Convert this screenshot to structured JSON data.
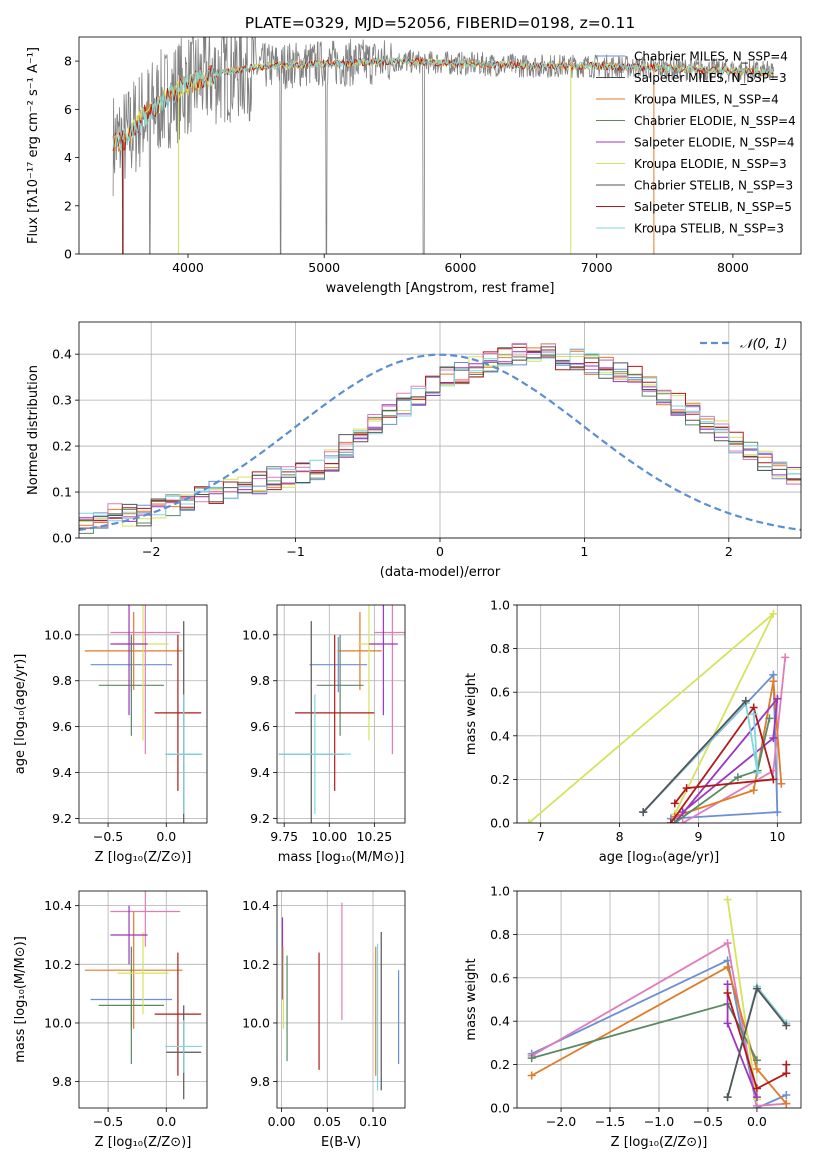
{
  "title": "PLATE=0329, MJD=52056, FIBERID=0198, z=0.11",
  "colors": {
    "chabrier_miles": "#6a8fd5",
    "salpeter_miles": "#4a4a4a",
    "kroupa_miles": "#e07b27",
    "chabrier_elodie": "#5a8a64",
    "salpeter_elodie": "#9c35c0",
    "kroupa_elodie": "#d5e35c",
    "chabrier_stelib": "#555555",
    "salpeter_stelib": "#b01a1a",
    "kroupa_stelib": "#7fd6e0",
    "pink": "#e07cb9"
  },
  "chart_data": [
    {
      "id": "spectrum",
      "type": "line",
      "xlabel": "wavelength [Angstrom, rest frame]",
      "ylabel": "Flux [fλ10⁻¹⁷ erg cm⁻² s⁻¹ A⁻¹]",
      "xlim": [
        3200,
        8500
      ],
      "ylim": [
        0,
        9
      ],
      "xticks": [
        "4000",
        "5000",
        "6000",
        "7000",
        "8000"
      ],
      "yticks": [
        "0",
        "2",
        "4",
        "6",
        "8"
      ],
      "legend_position": "top-right",
      "legend": [
        {
          "label": "Chabrier MILES, N_SSP=4",
          "color": "#6a8fd5"
        },
        {
          "label": "Salpeter MILES, N_SSP=3",
          "color": "#4a4a4a"
        },
        {
          "label": "Kroupa MILES, N_SSP=4",
          "color": "#e07b27"
        },
        {
          "label": "Chabrier ELODIE, N_SSP=4",
          "color": "#5a8a64"
        },
        {
          "label": "Salpeter ELODIE, N_SSP=4",
          "color": "#9c35c0"
        },
        {
          "label": "Kroupa ELODIE, N_SSP=3",
          "color": "#d5e35c"
        },
        {
          "label": "Chabrier STELIB, N_SSP=3",
          "color": "#555555"
        },
        {
          "label": "Salpeter STELIB, N_SSP=5",
          "color": "#b01a1a"
        },
        {
          "label": "Kroupa STELIB, N_SSP=3",
          "color": "#7fd6e0"
        }
      ],
      "model_continuum": {
        "x": [
          3450,
          3550,
          3650,
          3800,
          3950,
          4100,
          4300,
          4600,
          5000,
          5500,
          6000,
          6500,
          7000,
          7500,
          8000,
          8300
        ],
        "y": [
          4.6,
          4.8,
          5.6,
          6.3,
          6.9,
          7.3,
          7.6,
          7.8,
          7.9,
          8.0,
          7.9,
          7.8,
          7.8,
          7.7,
          7.6,
          7.5
        ]
      }
    },
    {
      "id": "residuals",
      "type": "histogram",
      "xlabel": "(data-model)/error",
      "ylabel": "Normed distribution",
      "xlim": [
        -2.5,
        2.5
      ],
      "ylim": [
        0,
        0.47
      ],
      "xticks": [
        "−2",
        "−1",
        "0",
        "1",
        "2"
      ],
      "yticks": [
        "0.0",
        "0.1",
        "0.2",
        "0.3",
        "0.4"
      ],
      "legend": [
        {
          "label": "𝒩(0, 1)",
          "color": "#5b8fd0"
        }
      ],
      "legend_position": "top-right",
      "reference": "normal(0,1)",
      "bins": {
        "start": -2.5,
        "width": 0.1,
        "values": [
          0.03,
          0.04,
          0.05,
          0.05,
          0.05,
          0.06,
          0.07,
          0.08,
          0.09,
          0.1,
          0.11,
          0.11,
          0.12,
          0.13,
          0.13,
          0.14,
          0.15,
          0.17,
          0.2,
          0.22,
          0.25,
          0.27,
          0.29,
          0.31,
          0.33,
          0.35,
          0.36,
          0.37,
          0.38,
          0.39,
          0.4,
          0.4,
          0.4,
          0.39,
          0.39,
          0.38,
          0.37,
          0.36,
          0.35,
          0.33,
          0.31,
          0.29,
          0.27,
          0.25,
          0.23,
          0.21,
          0.19,
          0.17,
          0.15,
          0.13
        ]
      }
    },
    {
      "id": "age_vs_Z",
      "type": "errorbar",
      "xlabel": "Z [log₁₀(Z/Z⊙)]",
      "ylabel": "age  [log₁₀(age/yr)]",
      "xlim": [
        -0.75,
        0.35
      ],
      "ylim": [
        9.18,
        10.13
      ],
      "xticks": [
        "−0.5",
        "0.0"
      ],
      "xtick_values": [
        -0.5,
        0
      ],
      "yticks": [
        "9.2",
        "9.4",
        "9.6",
        "9.8",
        "10.0"
      ],
      "ytick_values": [
        9.2,
        9.4,
        9.6,
        9.8,
        10.0
      ],
      "points": [
        {
          "x": -0.3,
          "xerr": 0.35,
          "y": 9.87,
          "yerr": 0.12,
          "color": "#6a8fd5"
        },
        {
          "x": -0.28,
          "xerr": 0.42,
          "y": 9.93,
          "yerr": 0.17,
          "color": "#e07b27"
        },
        {
          "x": -0.3,
          "xerr": 0.28,
          "y": 9.78,
          "yerr": 0.22,
          "color": "#5a8a64"
        },
        {
          "x": -0.2,
          "xerr": 0.22,
          "y": 9.96,
          "yerr": 0.42,
          "color": "#d5e35c"
        },
        {
          "x": -0.18,
          "xerr": 0.3,
          "y": 10.01,
          "yerr": 0.53,
          "color": "#e07cb9"
        },
        {
          "x": -0.32,
          "xerr": 0.16,
          "y": 9.96,
          "yerr": 0.31,
          "color": "#9c35c0"
        },
        {
          "x": 0.1,
          "xerr": 0.2,
          "y": 9.66,
          "yerr": 0.34,
          "color": "#b01a1a"
        },
        {
          "x": 0.15,
          "xerr": 0.15,
          "y": 9.48,
          "yerr": 0.58,
          "color": "#555555"
        },
        {
          "x": 0.15,
          "xerr": 0.16,
          "y": 9.48,
          "yerr": 0.26,
          "color": "#7fd6e0"
        }
      ]
    },
    {
      "id": "age_vs_mass",
      "type": "errorbar",
      "xlabel": "mass [log₁₀(M/M⊙)]",
      "ylabel": "",
      "xlim": [
        9.71,
        10.42
      ],
      "ylim": [
        9.18,
        10.13
      ],
      "xticks": [
        "9.75",
        "10.00",
        "10.25"
      ],
      "xtick_values": [
        9.75,
        10.0,
        10.25
      ],
      "yticks": [
        "9.2",
        "9.4",
        "9.6",
        "9.8",
        "10.0"
      ],
      "ytick_values": [
        9.2,
        9.4,
        9.6,
        9.8,
        10.0
      ],
      "points": [
        {
          "x": 10.05,
          "xerr": 0.16,
          "y": 9.87,
          "yerr": 0.12,
          "color": "#6a8fd5"
        },
        {
          "x": 10.17,
          "xerr": 0.12,
          "y": 9.93,
          "yerr": 0.17,
          "color": "#e07b27"
        },
        {
          "x": 10.06,
          "xerr": 0.13,
          "y": 9.78,
          "yerr": 0.22,
          "color": "#5a8a64"
        },
        {
          "x": 10.22,
          "xerr": 0.06,
          "y": 9.96,
          "yerr": 0.42,
          "color": "#d5e35c"
        },
        {
          "x": 10.35,
          "xerr": 0.1,
          "y": 10.01,
          "yerr": 0.53,
          "color": "#e07cb9"
        },
        {
          "x": 10.3,
          "xerr": 0.08,
          "y": 9.96,
          "yerr": 0.31,
          "color": "#9c35c0"
        },
        {
          "x": 10.03,
          "xerr": 0.22,
          "y": 9.66,
          "yerr": 0.34,
          "color": "#b01a1a"
        },
        {
          "x": 9.9,
          "xerr": 0.18,
          "y": 9.48,
          "yerr": 0.58,
          "color": "#555555"
        },
        {
          "x": 9.92,
          "xerr": 0.2,
          "y": 9.48,
          "yerr": 0.26,
          "color": "#7fd6e0"
        }
      ]
    },
    {
      "id": "massweight_vs_age",
      "type": "line",
      "xlabel": "age  [log₁₀(age/yr)]",
      "ylabel": "mass weight",
      "xlim": [
        6.7,
        10.3
      ],
      "ylim": [
        0,
        1
      ],
      "xticks": [
        "7",
        "8",
        "9",
        "10"
      ],
      "xtick_values": [
        7,
        8,
        9,
        10
      ],
      "yticks": [
        "0.0",
        "0.2",
        "0.4",
        "0.6",
        "0.8",
        "1.0"
      ],
      "ytick_values": [
        0,
        0.2,
        0.4,
        0.6,
        0.8,
        1.0
      ],
      "series": [
        {
          "color": "#d5e35c",
          "x": [
            6.85,
            9.95,
            8.7
          ],
          "y": [
            0.0,
            0.96,
            0.04
          ]
        },
        {
          "color": "#6a8fd5",
          "x": [
            8.3,
            9.95,
            10.0,
            8.65
          ],
          "y": [
            0.05,
            0.68,
            0.05,
            0.02
          ]
        },
        {
          "color": "#e07cb9",
          "x": [
            10.1,
            9.95,
            8.8
          ],
          "y": [
            0.76,
            0.24,
            0.0
          ]
        },
        {
          "color": "#e07b27",
          "x": [
            8.7,
            9.7,
            9.95,
            10.05
          ],
          "y": [
            0.03,
            0.15,
            0.65,
            0.18
          ]
        },
        {
          "color": "#9c35c0",
          "x": [
            8.8,
            9.95,
            10.0,
            8.7
          ],
          "y": [
            0.05,
            0.39,
            0.57,
            0.0
          ]
        },
        {
          "color": "#5a8a64",
          "x": [
            8.7,
            9.5,
            9.75,
            9.9
          ],
          "y": [
            0.0,
            0.21,
            0.24,
            0.48
          ]
        },
        {
          "color": "#b01a1a",
          "x": [
            8.65,
            9.7,
            9.95,
            8.85,
            8.7
          ],
          "y": [
            0.0,
            0.53,
            0.2,
            0.16,
            0.09
          ]
        },
        {
          "color": "#7fd6e0",
          "x": [
            8.3,
            9.6,
            9.75,
            9.7
          ],
          "y": [
            0.05,
            0.55,
            0.23,
            0.5
          ]
        },
        {
          "color": "#555555",
          "x": [
            8.3,
            9.6
          ],
          "y": [
            0.05,
            0.56
          ]
        }
      ]
    },
    {
      "id": "mass_vs_Z",
      "type": "errorbar",
      "xlabel": "Z [log₁₀(Z/Z⊙)]",
      "ylabel": "mass [log₁₀(M/M⊙)]",
      "xlim": [
        -0.75,
        0.35
      ],
      "ylim": [
        9.71,
        10.45
      ],
      "xticks": [
        "−0.5",
        "0.0"
      ],
      "xtick_values": [
        -0.5,
        0
      ],
      "yticks": [
        "9.8",
        "10.0",
        "10.2",
        "10.4"
      ],
      "ytick_values": [
        9.8,
        10.0,
        10.2,
        10.4
      ],
      "points": [
        {
          "x": -0.3,
          "xerr": 0.35,
          "y": 10.08,
          "yerr": 0.1,
          "color": "#6a8fd5"
        },
        {
          "x": -0.28,
          "xerr": 0.42,
          "y": 10.18,
          "yerr": 0.2,
          "color": "#e07b27"
        },
        {
          "x": -0.3,
          "xerr": 0.28,
          "y": 10.06,
          "yerr": 0.2,
          "color": "#5a8a64"
        },
        {
          "x": -0.2,
          "xerr": 0.22,
          "y": 10.17,
          "yerr": 0.14,
          "color": "#d5e35c"
        },
        {
          "x": -0.18,
          "xerr": 0.3,
          "y": 10.38,
          "yerr": 0.12,
          "color": "#e07cb9"
        },
        {
          "x": -0.32,
          "xerr": 0.16,
          "y": 10.3,
          "yerr": 0.1,
          "color": "#9c35c0"
        },
        {
          "x": 0.1,
          "xerr": 0.2,
          "y": 10.03,
          "yerr": 0.21,
          "color": "#b01a1a"
        },
        {
          "x": 0.15,
          "xerr": 0.15,
          "y": 9.9,
          "yerr": 0.16,
          "color": "#555555"
        },
        {
          "x": 0.15,
          "xerr": 0.16,
          "y": 9.92,
          "yerr": 0.09,
          "color": "#7fd6e0"
        }
      ]
    },
    {
      "id": "mass_vs_EBV",
      "type": "errorbar",
      "xlabel": "E(B-V)",
      "ylabel": "",
      "xlim": [
        -0.005,
        0.135
      ],
      "ylim": [
        9.71,
        10.45
      ],
      "xticks": [
        "0.00",
        "0.05",
        "0.10"
      ],
      "xtick_values": [
        0,
        0.05,
        0.1
      ],
      "yticks": [
        "9.8",
        "10.0",
        "10.2",
        "10.4"
      ],
      "ytick_values": [
        9.8,
        10.0,
        10.2,
        10.4
      ],
      "points": [
        {
          "x": 0.001,
          "xerr": 0,
          "y": 10.22,
          "yerr": 0.14,
          "color": "#9c35c0"
        },
        {
          "x": 0.002,
          "xerr": 0,
          "y": 10.12,
          "yerr": 0.14,
          "color": "#d5e35c"
        },
        {
          "x": 0.006,
          "xerr": 0,
          "y": 10.05,
          "yerr": 0.18,
          "color": "#5a8a64"
        },
        {
          "x": 0.041,
          "xerr": 0,
          "y": 10.04,
          "yerr": 0.2,
          "color": "#b01a1a"
        },
        {
          "x": 0.066,
          "xerr": 0,
          "y": 10.21,
          "yerr": 0.2,
          "color": "#e07cb9"
        },
        {
          "x": 0.103,
          "xerr": 0,
          "y": 10.04,
          "yerr": 0.22,
          "color": "#e07b27"
        },
        {
          "x": 0.105,
          "xerr": 0,
          "y": 10.02,
          "yerr": 0.25,
          "color": "#7fd6e0"
        },
        {
          "x": 0.109,
          "xerr": 0,
          "y": 10.04,
          "yerr": 0.27,
          "color": "#555555"
        },
        {
          "x": 0.128,
          "xerr": 0,
          "y": 10.02,
          "yerr": 0.16,
          "color": "#6a8fd5"
        }
      ]
    },
    {
      "id": "massweight_vs_Z",
      "type": "line",
      "xlabel": "Z [log₁₀(Z/Z⊙)]",
      "ylabel": "mass weight",
      "xlim": [
        -2.45,
        0.45
      ],
      "ylim": [
        0,
        1
      ],
      "xticks": [
        "−2.0",
        "−1.5",
        "−1.0",
        "−0.5",
        "0.0"
      ],
      "xtick_values": [
        -2.0,
        -1.5,
        -1.0,
        -0.5,
        0.0
      ],
      "yticks": [
        "0.0",
        "0.2",
        "0.4",
        "0.6",
        "0.8",
        "1.0"
      ],
      "ytick_values": [
        0,
        0.2,
        0.4,
        0.6,
        0.8,
        1.0
      ],
      "series": [
        {
          "color": "#6a8fd5",
          "x": [
            -2.3,
            -0.3,
            0.0,
            0.3
          ],
          "y": [
            0.25,
            0.68,
            0.0,
            0.06
          ]
        },
        {
          "color": "#e07cb9",
          "x": [
            -2.3,
            -0.3,
            0.0,
            0.3
          ],
          "y": [
            0.24,
            0.76,
            0.01,
            0.02
          ]
        },
        {
          "color": "#e07b27",
          "x": [
            -2.3,
            -0.3,
            0.0,
            0.3
          ],
          "y": [
            0.15,
            0.65,
            0.18,
            0.02
          ]
        },
        {
          "color": "#5a8a64",
          "x": [
            -2.3,
            -0.3,
            0.0
          ],
          "y": [
            0.23,
            0.48,
            0.22
          ]
        },
        {
          "color": "#d5e35c",
          "x": [
            -0.3,
            0.0
          ],
          "y": [
            0.96,
            0.04
          ]
        },
        {
          "color": "#9c35c0",
          "x": [
            -0.3,
            -0.3,
            0.0
          ],
          "y": [
            0.57,
            0.39,
            0.05
          ]
        },
        {
          "color": "#b01a1a",
          "x": [
            -0.3,
            0.0,
            0.3,
            0.3
          ],
          "y": [
            0.53,
            0.09,
            0.16,
            0.2
          ]
        },
        {
          "color": "#7fd6e0",
          "x": [
            -0.3,
            0.0,
            0.3
          ],
          "y": [
            0.05,
            0.56,
            0.39
          ]
        },
        {
          "color": "#555555",
          "x": [
            -0.3,
            0.0,
            0.3
          ],
          "y": [
            0.05,
            0.55,
            0.38
          ]
        }
      ]
    }
  ]
}
